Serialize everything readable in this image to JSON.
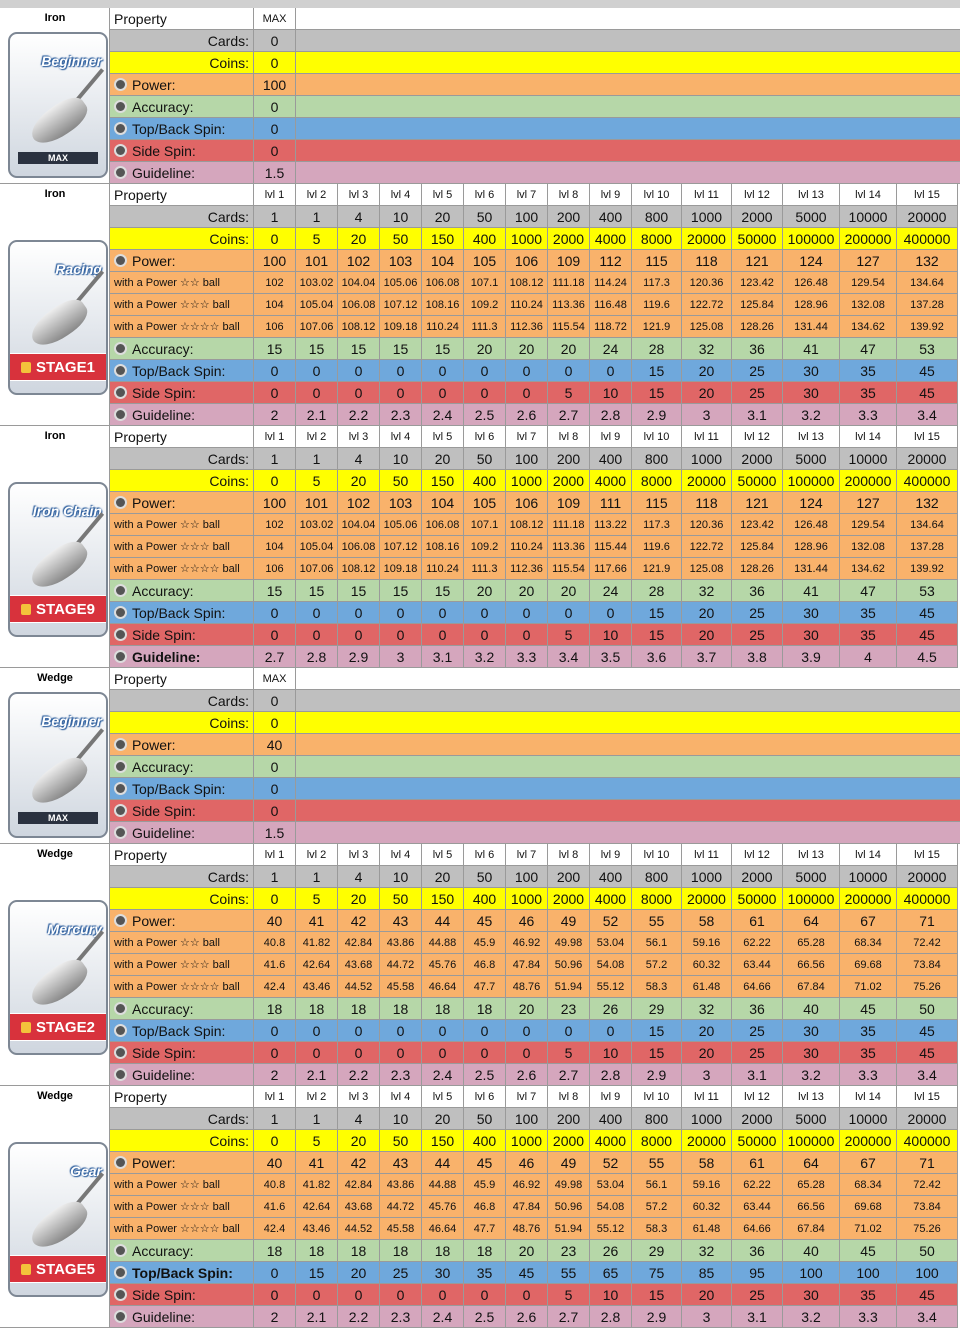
{
  "blocks": [
    {
      "category": "Iron",
      "club": "Beginner",
      "badge": "MAX",
      "header": {
        "property": "Property",
        "columns": [
          "MAX"
        ]
      },
      "rows": [
        {
          "label": "Cards:",
          "values": [
            0
          ]
        },
        {
          "label": "Coins:",
          "values": [
            0
          ]
        },
        {
          "label": "Power:",
          "values": [
            100
          ]
        },
        {
          "label": "Accuracy:",
          "values": [
            0
          ]
        },
        {
          "label": "Top/Back Spin:",
          "values": [
            0
          ]
        },
        {
          "label": "Side Spin:",
          "values": [
            0
          ]
        },
        {
          "label": "Guideline:",
          "values": [
            1.5
          ]
        }
      ]
    },
    {
      "category": "Iron",
      "club": "Racing",
      "badge": "STAGE1",
      "header": {
        "property": "Property",
        "columns": [
          "lvl 1",
          "lvl 2",
          "lvl 3",
          "lvl 4",
          "lvl 5",
          "lvl 6",
          "lvl 7",
          "lvl 8",
          "lvl 9",
          "lvl 10",
          "lvl 11",
          "lvl 12",
          "lvl 13",
          "lvl 14",
          "lvl 15"
        ]
      },
      "rows": [
        {
          "label": "Cards:",
          "values": [
            1,
            1,
            4,
            10,
            20,
            50,
            100,
            200,
            400,
            800,
            1000,
            2000,
            5000,
            10000,
            20000
          ]
        },
        {
          "label": "Coins:",
          "values": [
            0,
            5,
            20,
            50,
            150,
            400,
            1000,
            2000,
            4000,
            8000,
            20000,
            50000,
            100000,
            200000,
            400000
          ]
        },
        {
          "label": "Power:",
          "values": [
            100,
            101,
            102,
            103,
            104,
            105,
            106,
            109,
            112,
            115,
            118,
            121,
            124,
            127,
            132
          ]
        },
        {
          "label": "with a Power ☆☆ ball",
          "values": [
            102,
            103.02,
            104.04,
            105.06,
            106.08,
            107.1,
            108.12,
            111.18,
            114.24,
            117.3,
            120.36,
            123.42,
            126.48,
            129.54,
            134.64
          ]
        },
        {
          "label": "with a Power ☆☆☆ ball",
          "values": [
            104,
            105.04,
            106.08,
            107.12,
            108.16,
            109.2,
            110.24,
            113.36,
            116.48,
            119.6,
            122.72,
            125.84,
            128.96,
            132.08,
            137.28
          ]
        },
        {
          "label": "with a Power ☆☆☆☆ ball",
          "values": [
            106,
            107.06,
            108.12,
            109.18,
            110.24,
            111.3,
            112.36,
            115.54,
            118.72,
            121.9,
            125.08,
            128.26,
            131.44,
            134.62,
            139.92
          ]
        },
        {
          "label": "Accuracy:",
          "values": [
            15,
            15,
            15,
            15,
            15,
            20,
            20,
            20,
            24,
            28,
            32,
            36,
            41,
            47,
            53
          ]
        },
        {
          "label": "Top/Back Spin:",
          "values": [
            0,
            0,
            0,
            0,
            0,
            0,
            0,
            0,
            0,
            15,
            20,
            25,
            30,
            35,
            45
          ]
        },
        {
          "label": "Side Spin:",
          "values": [
            0,
            0,
            0,
            0,
            0,
            0,
            0,
            5,
            10,
            15,
            20,
            25,
            30,
            35,
            45
          ]
        },
        {
          "label": "Guideline:",
          "values": [
            2,
            2.1,
            2.2,
            2.3,
            2.4,
            2.5,
            2.6,
            2.7,
            2.8,
            2.9,
            3,
            3.1,
            3.2,
            3.3,
            3.4
          ]
        }
      ]
    },
    {
      "category": "Iron",
      "club": "Iron Chain",
      "badge": "STAGE9",
      "header": {
        "property": "Property",
        "columns": [
          "lvl 1",
          "lvl 2",
          "lvl 3",
          "lvl 4",
          "lvl 5",
          "lvl 6",
          "lvl 7",
          "lvl 8",
          "lvl 9",
          "lvl 10",
          "lvl 11",
          "lvl 12",
          "lvl 13",
          "lvl 14",
          "lvl 15"
        ]
      },
      "rows": [
        {
          "label": "Cards:",
          "values": [
            1,
            1,
            4,
            10,
            20,
            50,
            100,
            200,
            400,
            800,
            1000,
            2000,
            5000,
            10000,
            20000
          ]
        },
        {
          "label": "Coins:",
          "values": [
            0,
            5,
            20,
            50,
            150,
            400,
            1000,
            2000,
            4000,
            8000,
            20000,
            50000,
            100000,
            200000,
            400000
          ]
        },
        {
          "label": "Power:",
          "values": [
            100,
            101,
            102,
            103,
            104,
            105,
            106,
            109,
            111,
            115,
            118,
            121,
            124,
            127,
            132
          ]
        },
        {
          "label": "with a Power ☆☆ ball",
          "values": [
            102,
            103.02,
            104.04,
            105.06,
            106.08,
            107.1,
            108.12,
            111.18,
            113.22,
            117.3,
            120.36,
            123.42,
            126.48,
            129.54,
            134.64
          ]
        },
        {
          "label": "with a Power ☆☆☆ ball",
          "values": [
            104,
            105.04,
            106.08,
            107.12,
            108.16,
            109.2,
            110.24,
            113.36,
            115.44,
            119.6,
            122.72,
            125.84,
            128.96,
            132.08,
            137.28
          ]
        },
        {
          "label": "with a Power ☆☆☆☆ ball",
          "values": [
            106,
            107.06,
            108.12,
            109.18,
            110.24,
            111.3,
            112.36,
            115.54,
            117.66,
            121.9,
            125.08,
            128.26,
            131.44,
            134.62,
            139.92
          ]
        },
        {
          "label": "Accuracy:",
          "values": [
            15,
            15,
            15,
            15,
            15,
            20,
            20,
            20,
            24,
            28,
            32,
            36,
            41,
            47,
            53
          ]
        },
        {
          "label": "Top/Back Spin:",
          "values": [
            0,
            0,
            0,
            0,
            0,
            0,
            0,
            0,
            0,
            15,
            20,
            25,
            30,
            35,
            45
          ]
        },
        {
          "label": "Side Spin:",
          "values": [
            0,
            0,
            0,
            0,
            0,
            0,
            0,
            5,
            10,
            15,
            20,
            25,
            30,
            35,
            45
          ]
        },
        {
          "label": "Guideline:",
          "values": [
            2.7,
            2.8,
            2.9,
            3,
            3.1,
            3.2,
            3.3,
            3.4,
            3.5,
            3.6,
            3.7,
            3.8,
            3.9,
            4,
            4.5
          ]
        }
      ]
    },
    {
      "category": "Wedge",
      "club": "Beginner",
      "badge": "MAX",
      "header": {
        "property": "Property",
        "columns": [
          "MAX"
        ]
      },
      "rows": [
        {
          "label": "Cards:",
          "values": [
            0
          ]
        },
        {
          "label": "Coins:",
          "values": [
            0
          ]
        },
        {
          "label": "Power:",
          "values": [
            40
          ]
        },
        {
          "label": "Accuracy:",
          "values": [
            0
          ]
        },
        {
          "label": "Top/Back Spin:",
          "values": [
            0
          ]
        },
        {
          "label": "Side Spin:",
          "values": [
            0
          ]
        },
        {
          "label": "Guideline:",
          "values": [
            1.5
          ]
        }
      ]
    },
    {
      "category": "Wedge",
      "club": "Mercury",
      "badge": "STAGE2",
      "header": {
        "property": "Property",
        "columns": [
          "lvl 1",
          "lvl 2",
          "lvl 3",
          "lvl 4",
          "lvl 5",
          "lvl 6",
          "lvl 7",
          "lvl 8",
          "lvl 9",
          "lvl 10",
          "lvl 11",
          "lvl 12",
          "lvl 13",
          "lvl 14",
          "lvl 15"
        ]
      },
      "rows": [
        {
          "label": "Cards:",
          "values": [
            1,
            1,
            4,
            10,
            20,
            50,
            100,
            200,
            400,
            800,
            1000,
            2000,
            5000,
            10000,
            20000
          ]
        },
        {
          "label": "Coins:",
          "values": [
            0,
            5,
            20,
            50,
            150,
            400,
            1000,
            2000,
            4000,
            8000,
            20000,
            50000,
            100000,
            200000,
            400000
          ]
        },
        {
          "label": "Power:",
          "values": [
            40,
            41,
            42,
            43,
            44,
            45,
            46,
            49,
            52,
            55,
            58,
            61,
            64,
            67,
            71
          ]
        },
        {
          "label": "with a Power ☆☆ ball",
          "values": [
            40.8,
            41.82,
            42.84,
            43.86,
            44.88,
            45.9,
            46.92,
            49.98,
            53.04,
            56.1,
            59.16,
            62.22,
            65.28,
            68.34,
            72.42
          ]
        },
        {
          "label": "with a Power ☆☆☆ ball",
          "values": [
            41.6,
            42.64,
            43.68,
            44.72,
            45.76,
            46.8,
            47.84,
            50.96,
            54.08,
            57.2,
            60.32,
            63.44,
            66.56,
            69.68,
            73.84
          ]
        },
        {
          "label": "with a Power ☆☆☆☆ ball",
          "values": [
            42.4,
            43.46,
            44.52,
            45.58,
            46.64,
            47.7,
            48.76,
            51.94,
            55.12,
            58.3,
            61.48,
            64.66,
            67.84,
            71.02,
            75.26
          ]
        },
        {
          "label": "Accuracy:",
          "values": [
            18,
            18,
            18,
            18,
            18,
            18,
            20,
            23,
            26,
            29,
            32,
            36,
            40,
            45,
            50
          ]
        },
        {
          "label": "Top/Back Spin:",
          "values": [
            0,
            0,
            0,
            0,
            0,
            0,
            0,
            0,
            0,
            15,
            20,
            25,
            30,
            35,
            45
          ]
        },
        {
          "label": "Side Spin:",
          "values": [
            0,
            0,
            0,
            0,
            0,
            0,
            0,
            5,
            10,
            15,
            20,
            25,
            30,
            35,
            45
          ]
        },
        {
          "label": "Guideline:",
          "values": [
            2,
            2.1,
            2.2,
            2.3,
            2.4,
            2.5,
            2.6,
            2.7,
            2.8,
            2.9,
            3,
            3.1,
            3.2,
            3.3,
            3.4
          ]
        }
      ]
    },
    {
      "category": "Wedge",
      "club": "Gear",
      "badge": "STAGE5",
      "header": {
        "property": "Property",
        "columns": [
          "lvl 1",
          "lvl 2",
          "lvl 3",
          "lvl 4",
          "lvl 5",
          "lvl 6",
          "lvl 7",
          "lvl 8",
          "lvl 9",
          "lvl 10",
          "lvl 11",
          "lvl 12",
          "lvl 13",
          "lvl 14",
          "lvl 15"
        ]
      },
      "rows": [
        {
          "label": "Cards:",
          "values": [
            1,
            1,
            4,
            10,
            20,
            50,
            100,
            200,
            400,
            800,
            1000,
            2000,
            5000,
            10000,
            20000
          ]
        },
        {
          "label": "Coins:",
          "values": [
            0,
            5,
            20,
            50,
            150,
            400,
            1000,
            2000,
            4000,
            8000,
            20000,
            50000,
            100000,
            200000,
            400000
          ]
        },
        {
          "label": "Power:",
          "values": [
            40,
            41,
            42,
            43,
            44,
            45,
            46,
            49,
            52,
            55,
            58,
            61,
            64,
            67,
            71
          ]
        },
        {
          "label": "with a Power ☆☆ ball",
          "values": [
            40.8,
            41.82,
            42.84,
            43.86,
            44.88,
            45.9,
            46.92,
            49.98,
            53.04,
            56.1,
            59.16,
            62.22,
            65.28,
            68.34,
            72.42
          ]
        },
        {
          "label": "with a Power ☆☆☆ ball",
          "values": [
            41.6,
            42.64,
            43.68,
            44.72,
            45.76,
            46.8,
            47.84,
            50.96,
            54.08,
            57.2,
            60.32,
            63.44,
            66.56,
            69.68,
            73.84
          ]
        },
        {
          "label": "with a Power ☆☆☆☆ ball",
          "values": [
            42.4,
            43.46,
            44.52,
            45.58,
            46.64,
            47.7,
            48.76,
            51.94,
            55.12,
            58.3,
            61.48,
            64.66,
            67.84,
            71.02,
            75.26
          ]
        },
        {
          "label": "Accuracy:",
          "values": [
            18,
            18,
            18,
            18,
            18,
            18,
            20,
            23,
            26,
            29,
            32,
            36,
            40,
            45,
            50
          ]
        },
        {
          "label": "Top/Back Spin:",
          "values": [
            0,
            15,
            20,
            25,
            30,
            35,
            45,
            55,
            65,
            75,
            85,
            95,
            100,
            100,
            100
          ]
        },
        {
          "label": "Side Spin:",
          "values": [
            0,
            0,
            0,
            0,
            0,
            0,
            0,
            5,
            10,
            15,
            20,
            25,
            30,
            35,
            45
          ]
        },
        {
          "label": "Guideline:",
          "values": [
            2,
            2.1,
            2.2,
            2.3,
            2.4,
            2.5,
            2.6,
            2.7,
            2.8,
            2.9,
            3,
            3.1,
            3.2,
            3.3,
            3.4
          ]
        }
      ]
    }
  ]
}
